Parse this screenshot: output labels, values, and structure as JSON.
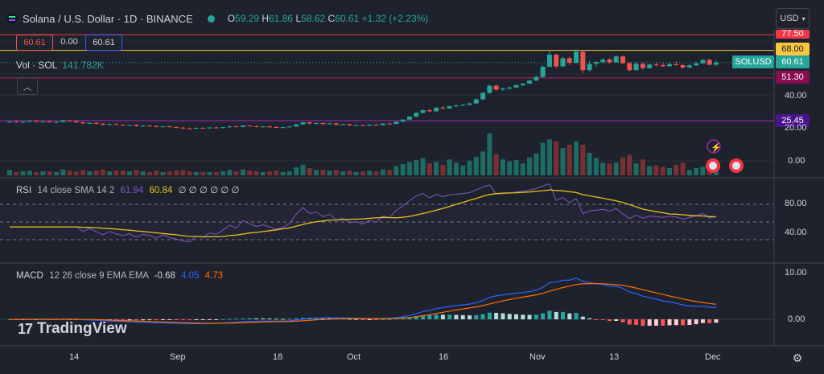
{
  "header": {
    "symbol_title": "Solana / U.S. Dollar · 1D · BINANCE",
    "ohlc": {
      "o_label": "O",
      "o": "59.29",
      "h_label": "H",
      "h": "61.86",
      "l_label": "L",
      "l": "58.62",
      "c_label": "C",
      "c": "60.61",
      "change": "+1.32 (+2.23%)"
    },
    "currency_button": "USD"
  },
  "order_boxes": {
    "sell": "60.61",
    "spread": "0.00",
    "buy": "60.61"
  },
  "volume": {
    "label": "Vol · SOL",
    "value": "141.782K"
  },
  "rsi": {
    "label": "RSI",
    "params": "14 close SMA 14 2",
    "rsi_value": "61.94",
    "sma_value": "60.84",
    "placeholders": "∅ ∅ ∅ ∅ ∅ ∅"
  },
  "macd": {
    "label": "MACD",
    "params": "12 26 close 9 EMA EMA",
    "hist_value": "-0.68",
    "macd_value": "4.05",
    "signal_value": "4.73"
  },
  "logo": {
    "text": "TradingView"
  },
  "price_axis": [
    "40.00",
    "20.00",
    "0.00"
  ],
  "price_tags": {
    "top": "77.50",
    "resistance": "68.00",
    "symbol": "SOLUSD",
    "last": "60.61",
    "support1": "51.30",
    "support2": "25.45"
  },
  "rsi_axis": [
    "80.00",
    "40.00"
  ],
  "macd_axis": [
    "10.00",
    "0.00"
  ],
  "time_axis": [
    "14",
    "Sep",
    "18",
    "Oct",
    "16",
    "Nov",
    "13",
    "Dec"
  ],
  "colors": {
    "bull": "#26a69a",
    "bear": "#ef5350",
    "rsi": "#7e57c2",
    "sma": "#e5c01c",
    "macd": "#2962ff",
    "signal": "#ff6d00",
    "resistance": "#f9c640",
    "support": "#c2185b",
    "support2": "#9c27b0"
  },
  "chart_data": {
    "type": "candlestick",
    "candles": [
      [
        24.5,
        25.3,
        24,
        24.8
      ],
      [
        24.8,
        25.5,
        24.3,
        24.4
      ],
      [
        24.4,
        25,
        23.8,
        24.9
      ],
      [
        24.9,
        25.8,
        24.6,
        25.2
      ],
      [
        25.2,
        25.6,
        24.5,
        24.7
      ],
      [
        24.7,
        25.2,
        24.2,
        24.9
      ],
      [
        24.9,
        25.4,
        24.3,
        24.5
      ],
      [
        24.5,
        25,
        23.9,
        24.6
      ],
      [
        24.6,
        25.9,
        24.4,
        25.5
      ],
      [
        25.5,
        25.8,
        24.8,
        25
      ],
      [
        25,
        25.4,
        24.1,
        24.3
      ],
      [
        24.3,
        24.8,
        23.4,
        23.7
      ],
      [
        23.7,
        24.3,
        23.3,
        24
      ],
      [
        24,
        24.4,
        23.1,
        23.5
      ],
      [
        23.5,
        23.9,
        22.6,
        22.9
      ],
      [
        22.9,
        23.6,
        22.5,
        23.3
      ],
      [
        23.3,
        23.8,
        22.7,
        22.8
      ],
      [
        22.8,
        23.2,
        22.3,
        22.5
      ],
      [
        22.5,
        23,
        22.1,
        22.7
      ],
      [
        22.7,
        23.1,
        21.8,
        22
      ],
      [
        22,
        22.6,
        21.6,
        22.3
      ],
      [
        22.3,
        22.8,
        21.9,
        22.1
      ],
      [
        22.1,
        22.5,
        21.3,
        21.6
      ],
      [
        21.6,
        22.2,
        21.2,
        21.9
      ],
      [
        21.9,
        22.3,
        21.2,
        21.4
      ],
      [
        21.4,
        21.9,
        20.8,
        21.1
      ],
      [
        21.1,
        21.6,
        20.4,
        20.7
      ],
      [
        20.7,
        21.2,
        20.1,
        20.5
      ],
      [
        20.5,
        21.3,
        20.2,
        21
      ],
      [
        21,
        21.5,
        20.6,
        20.8
      ],
      [
        20.8,
        21.4,
        20.5,
        21.2
      ],
      [
        21.2,
        21.7,
        20.7,
        21
      ],
      [
        21,
        21.6,
        20.6,
        21.4
      ],
      [
        21.4,
        22.2,
        21.1,
        21.9
      ],
      [
        21.9,
        22.3,
        21.3,
        21.5
      ],
      [
        21.5,
        22.6,
        21.3,
        22.4
      ],
      [
        22.4,
        22.8,
        21.8,
        22
      ],
      [
        22,
        22.4,
        21.3,
        21.6
      ],
      [
        21.6,
        22.1,
        21.2,
        21.8
      ],
      [
        21.8,
        22.3,
        21.4,
        21.5
      ],
      [
        21.5,
        21.9,
        20.8,
        21.2
      ],
      [
        21.2,
        21.6,
        20.7,
        21.4
      ],
      [
        21.4,
        22.1,
        21.1,
        21.8
      ],
      [
        21.8,
        23.4,
        21.6,
        23.1
      ],
      [
        23.1,
        24.6,
        22.8,
        24.3
      ],
      [
        24.3,
        24.8,
        23.2,
        23.6
      ],
      [
        23.6,
        24.1,
        23.1,
        23.9
      ],
      [
        23.9,
        24.2,
        23,
        23.3
      ],
      [
        23.3,
        24,
        23,
        23.7
      ],
      [
        23.7,
        24,
        22.6,
        22.9
      ],
      [
        22.9,
        23.4,
        22.5,
        23.2
      ],
      [
        23.2,
        23.5,
        22.2,
        22.5
      ],
      [
        22.5,
        22.9,
        22,
        22.7
      ],
      [
        22.7,
        23,
        22.1,
        22.3
      ],
      [
        22.3,
        23.1,
        22.1,
        22.9
      ],
      [
        22.9,
        23.4,
        22.4,
        22.6
      ],
      [
        22.6,
        23.8,
        22.4,
        23.6
      ],
      [
        23.6,
        24.2,
        23.2,
        23.4
      ],
      [
        23.4,
        25,
        23.3,
        24.8
      ],
      [
        24.8,
        26.2,
        24.6,
        26
      ],
      [
        26,
        28.1,
        25.8,
        27.8
      ],
      [
        27.8,
        30.5,
        27.5,
        30.1
      ],
      [
        30.1,
        32.2,
        29.7,
        31.7
      ],
      [
        31.7,
        32.3,
        30.5,
        31
      ],
      [
        31,
        33.6,
        30.8,
        33.2
      ],
      [
        33.2,
        34.2,
        32.4,
        32.8
      ],
      [
        32.8,
        34.4,
        32.6,
        34.1
      ],
      [
        34.1,
        35.2,
        33.5,
        34.6
      ],
      [
        34.6,
        35.4,
        34.1,
        35
      ],
      [
        35,
        36.3,
        34.6,
        35.8
      ],
      [
        35.8,
        38.9,
        35.5,
        38.3
      ],
      [
        38.3,
        42.7,
        37.9,
        42.2
      ],
      [
        42.2,
        47.2,
        41.6,
        46.5
      ],
      [
        46.5,
        47.1,
        43.6,
        44.2
      ],
      [
        44.2,
        45.3,
        43.3,
        44.8
      ],
      [
        44.8,
        46.1,
        44.2,
        45.5
      ],
      [
        45.5,
        47.2,
        45.1,
        46.9
      ],
      [
        46.9,
        48.3,
        46.4,
        47.8
      ],
      [
        47.8,
        50.1,
        47.5,
        49.7
      ],
      [
        49.7,
        52.6,
        49.2,
        51.9
      ],
      [
        51.9,
        58.8,
        51.5,
        58.1
      ],
      [
        58.1,
        67.9,
        57.8,
        65.4
      ],
      [
        65.4,
        66,
        57.2,
        58.3
      ],
      [
        58.3,
        64.1,
        57.9,
        63.2
      ],
      [
        63.2,
        64.2,
        59.1,
        60.4
      ],
      [
        60.4,
        68.6,
        60.1,
        67.2
      ],
      [
        67.2,
        68,
        54.2,
        56
      ],
      [
        56,
        61.7,
        55.2,
        59.8
      ],
      [
        59.8,
        61.5,
        58,
        60.9
      ],
      [
        60.9,
        63.2,
        60.1,
        62.4
      ],
      [
        62.4,
        63.3,
        59.9,
        60.8
      ],
      [
        60.8,
        65.2,
        60.4,
        64.3
      ],
      [
        64.3,
        64.9,
        59.7,
        60.2
      ],
      [
        60.2,
        60.8,
        55.2,
        56
      ],
      [
        56,
        60.9,
        55.6,
        59.8
      ],
      [
        59.8,
        60.7,
        56.4,
        57.2
      ],
      [
        57.2,
        59.8,
        56.7,
        59.4
      ],
      [
        59.4,
        60.6,
        58.2,
        59.1
      ],
      [
        59.1,
        60.3,
        57.8,
        58.4
      ],
      [
        58.4,
        60.7,
        58.1,
        59.6
      ],
      [
        59.6,
        61.4,
        58.7,
        59
      ],
      [
        59,
        59.6,
        56.8,
        57.6
      ],
      [
        57.6,
        59.5,
        57.2,
        58.9
      ],
      [
        58.9,
        61.1,
        58.4,
        60.1
      ],
      [
        60.1,
        62.7,
        59.8,
        62.2
      ],
      [
        62.2,
        62.9,
        58.9,
        59.3
      ],
      [
        59.3,
        61.86,
        58.62,
        60.61
      ]
    ],
    "volume": [
      0.8,
      0.5,
      0.6,
      0.7,
      0.5,
      0.6,
      0.6,
      0.5,
      0.9,
      0.7,
      0.6,
      0.8,
      0.6,
      0.7,
      0.9,
      0.6,
      0.7,
      0.7,
      0.6,
      0.8,
      0.6,
      0.5,
      0.7,
      0.5,
      0.6,
      0.7,
      0.8,
      0.6,
      0.5,
      0.5,
      0.5,
      0.5,
      0.6,
      0.8,
      0.6,
      0.9,
      0.7,
      0.6,
      0.5,
      0.6,
      0.7,
      0.5,
      0.6,
      1.2,
      1.6,
      1.1,
      0.8,
      0.8,
      0.7,
      0.8,
      0.6,
      0.7,
      0.5,
      0.6,
      0.7,
      0.6,
      0.9,
      0.8,
      1.4,
      1.7,
      2,
      2.3,
      2.6,
      1.8,
      2,
      1.6,
      2.4,
      1.9,
      1.5,
      2.2,
      2.8,
      3.6,
      6.3,
      3.2,
      2.4,
      2.1,
      2.3,
      1.8,
      2.7,
      3.3,
      4.9,
      5.4,
      5.1,
      4.1,
      4.6,
      5.1,
      4.6,
      3.4,
      2.6,
      1.9,
      1.8,
      1.9,
      2.7,
      3.1,
      1.8,
      2.4,
      1.4,
      1.5,
      1.3,
      1.1,
      1.6,
      1.9,
      0.8,
      1.1,
      1.3,
      1.2,
      1
    ],
    "rsi_axis_range": [
      20,
      100
    ],
    "macd_axis_range": [
      -3,
      11
    ]
  }
}
